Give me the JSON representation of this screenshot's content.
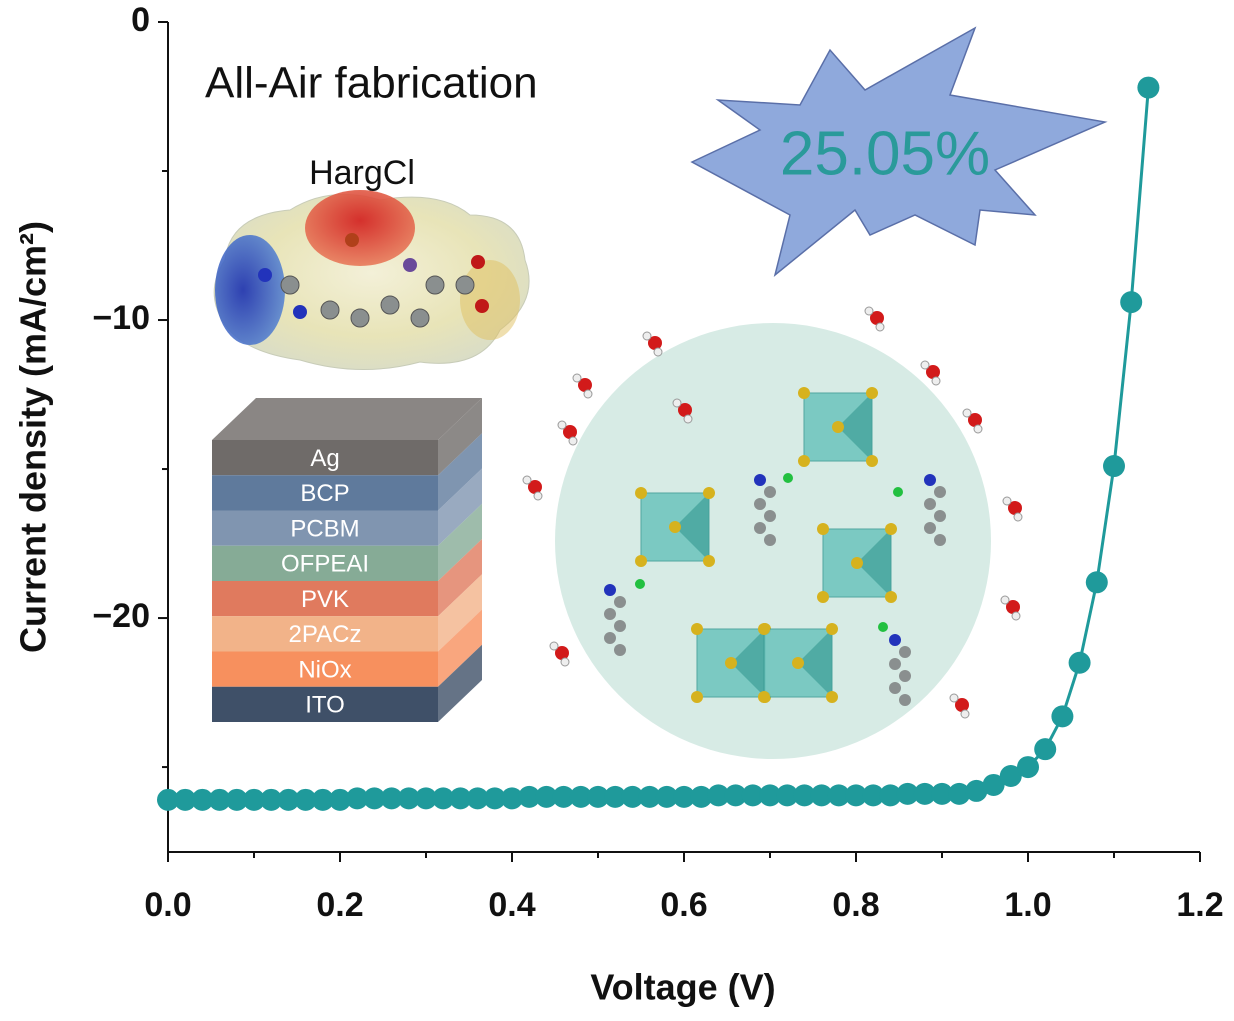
{
  "chart_data": {
    "type": "line",
    "xlabel": "Voltage (V)",
    "ylabel": "Current density (mA/cm²)",
    "x": [
      0.0,
      0.02,
      0.04,
      0.06,
      0.08,
      0.1,
      0.12,
      0.14,
      0.16,
      0.18,
      0.2,
      0.22,
      0.24,
      0.26,
      0.28,
      0.3,
      0.32,
      0.34,
      0.36,
      0.38,
      0.4,
      0.42,
      0.44,
      0.46,
      0.48,
      0.5,
      0.52,
      0.54,
      0.56,
      0.58,
      0.6,
      0.62,
      0.64,
      0.66,
      0.68,
      0.7,
      0.72,
      0.74,
      0.76,
      0.78,
      0.8,
      0.82,
      0.84,
      0.86,
      0.88,
      0.9,
      0.92,
      0.94,
      0.96,
      0.98,
      1.0,
      1.02,
      1.04,
      1.06,
      1.08,
      1.1,
      1.12,
      1.14
    ],
    "series": [
      {
        "name": "HargCl",
        "color": "#1f9a9b",
        "values": [
          -26.1,
          -26.1,
          -26.1,
          -26.1,
          -26.1,
          -26.1,
          -26.1,
          -26.1,
          -26.1,
          -26.1,
          -26.1,
          -26.05,
          -26.05,
          -26.05,
          -26.05,
          -26.05,
          -26.05,
          -26.05,
          -26.05,
          -26.05,
          -26.05,
          -26.0,
          -26.0,
          -26.0,
          -26.0,
          -26.0,
          -26.0,
          -26.0,
          -26.0,
          -26.0,
          -26.0,
          -26.0,
          -25.95,
          -25.95,
          -25.95,
          -25.95,
          -25.95,
          -25.95,
          -25.95,
          -25.95,
          -25.95,
          -25.95,
          -25.95,
          -25.9,
          -25.9,
          -25.9,
          -25.9,
          -25.8,
          -25.6,
          -25.3,
          -25.0,
          -24.4,
          -23.3,
          -21.5,
          -18.8,
          -14.9,
          -9.4,
          -2.2
        ]
      }
    ],
    "xlim": [
      0,
      1.2
    ],
    "ylim": [
      -27.85,
      0
    ],
    "xticks": [
      {
        "value": 0,
        "label": "0.0"
      },
      0.2,
      0.4,
      0.6,
      0.8,
      {
        "value": 1,
        "label": "1.0"
      },
      1.2
    ],
    "xminorticks": [
      0.1,
      0.3,
      0.5,
      0.7,
      0.9,
      1.1
    ],
    "yticks": [
      0,
      {
        "value": -10,
        "label": "−10"
      },
      {
        "value": -20,
        "label": "−20"
      }
    ],
    "yminorticks": [
      -5,
      -15,
      -25
    ],
    "annotations": [
      "All-Air fabrication",
      "HargCl",
      "25.05%"
    ],
    "layers": [
      {
        "name": "Ag",
        "color": "#6f6b69"
      },
      {
        "name": "BCP",
        "color": "#5f7a9c"
      },
      {
        "name": "PCBM",
        "color": "#8095b0"
      },
      {
        "name": "OFPEAI",
        "color": "#86ab96"
      },
      {
        "name": "PVK",
        "color": "#e07a5e"
      },
      {
        "name": "2PACz",
        "color": "#f2b389"
      },
      {
        "name": "NiOx",
        "color": "#f7905e"
      },
      {
        "name": "ITO",
        "color": "#3f5068"
      }
    ]
  }
}
